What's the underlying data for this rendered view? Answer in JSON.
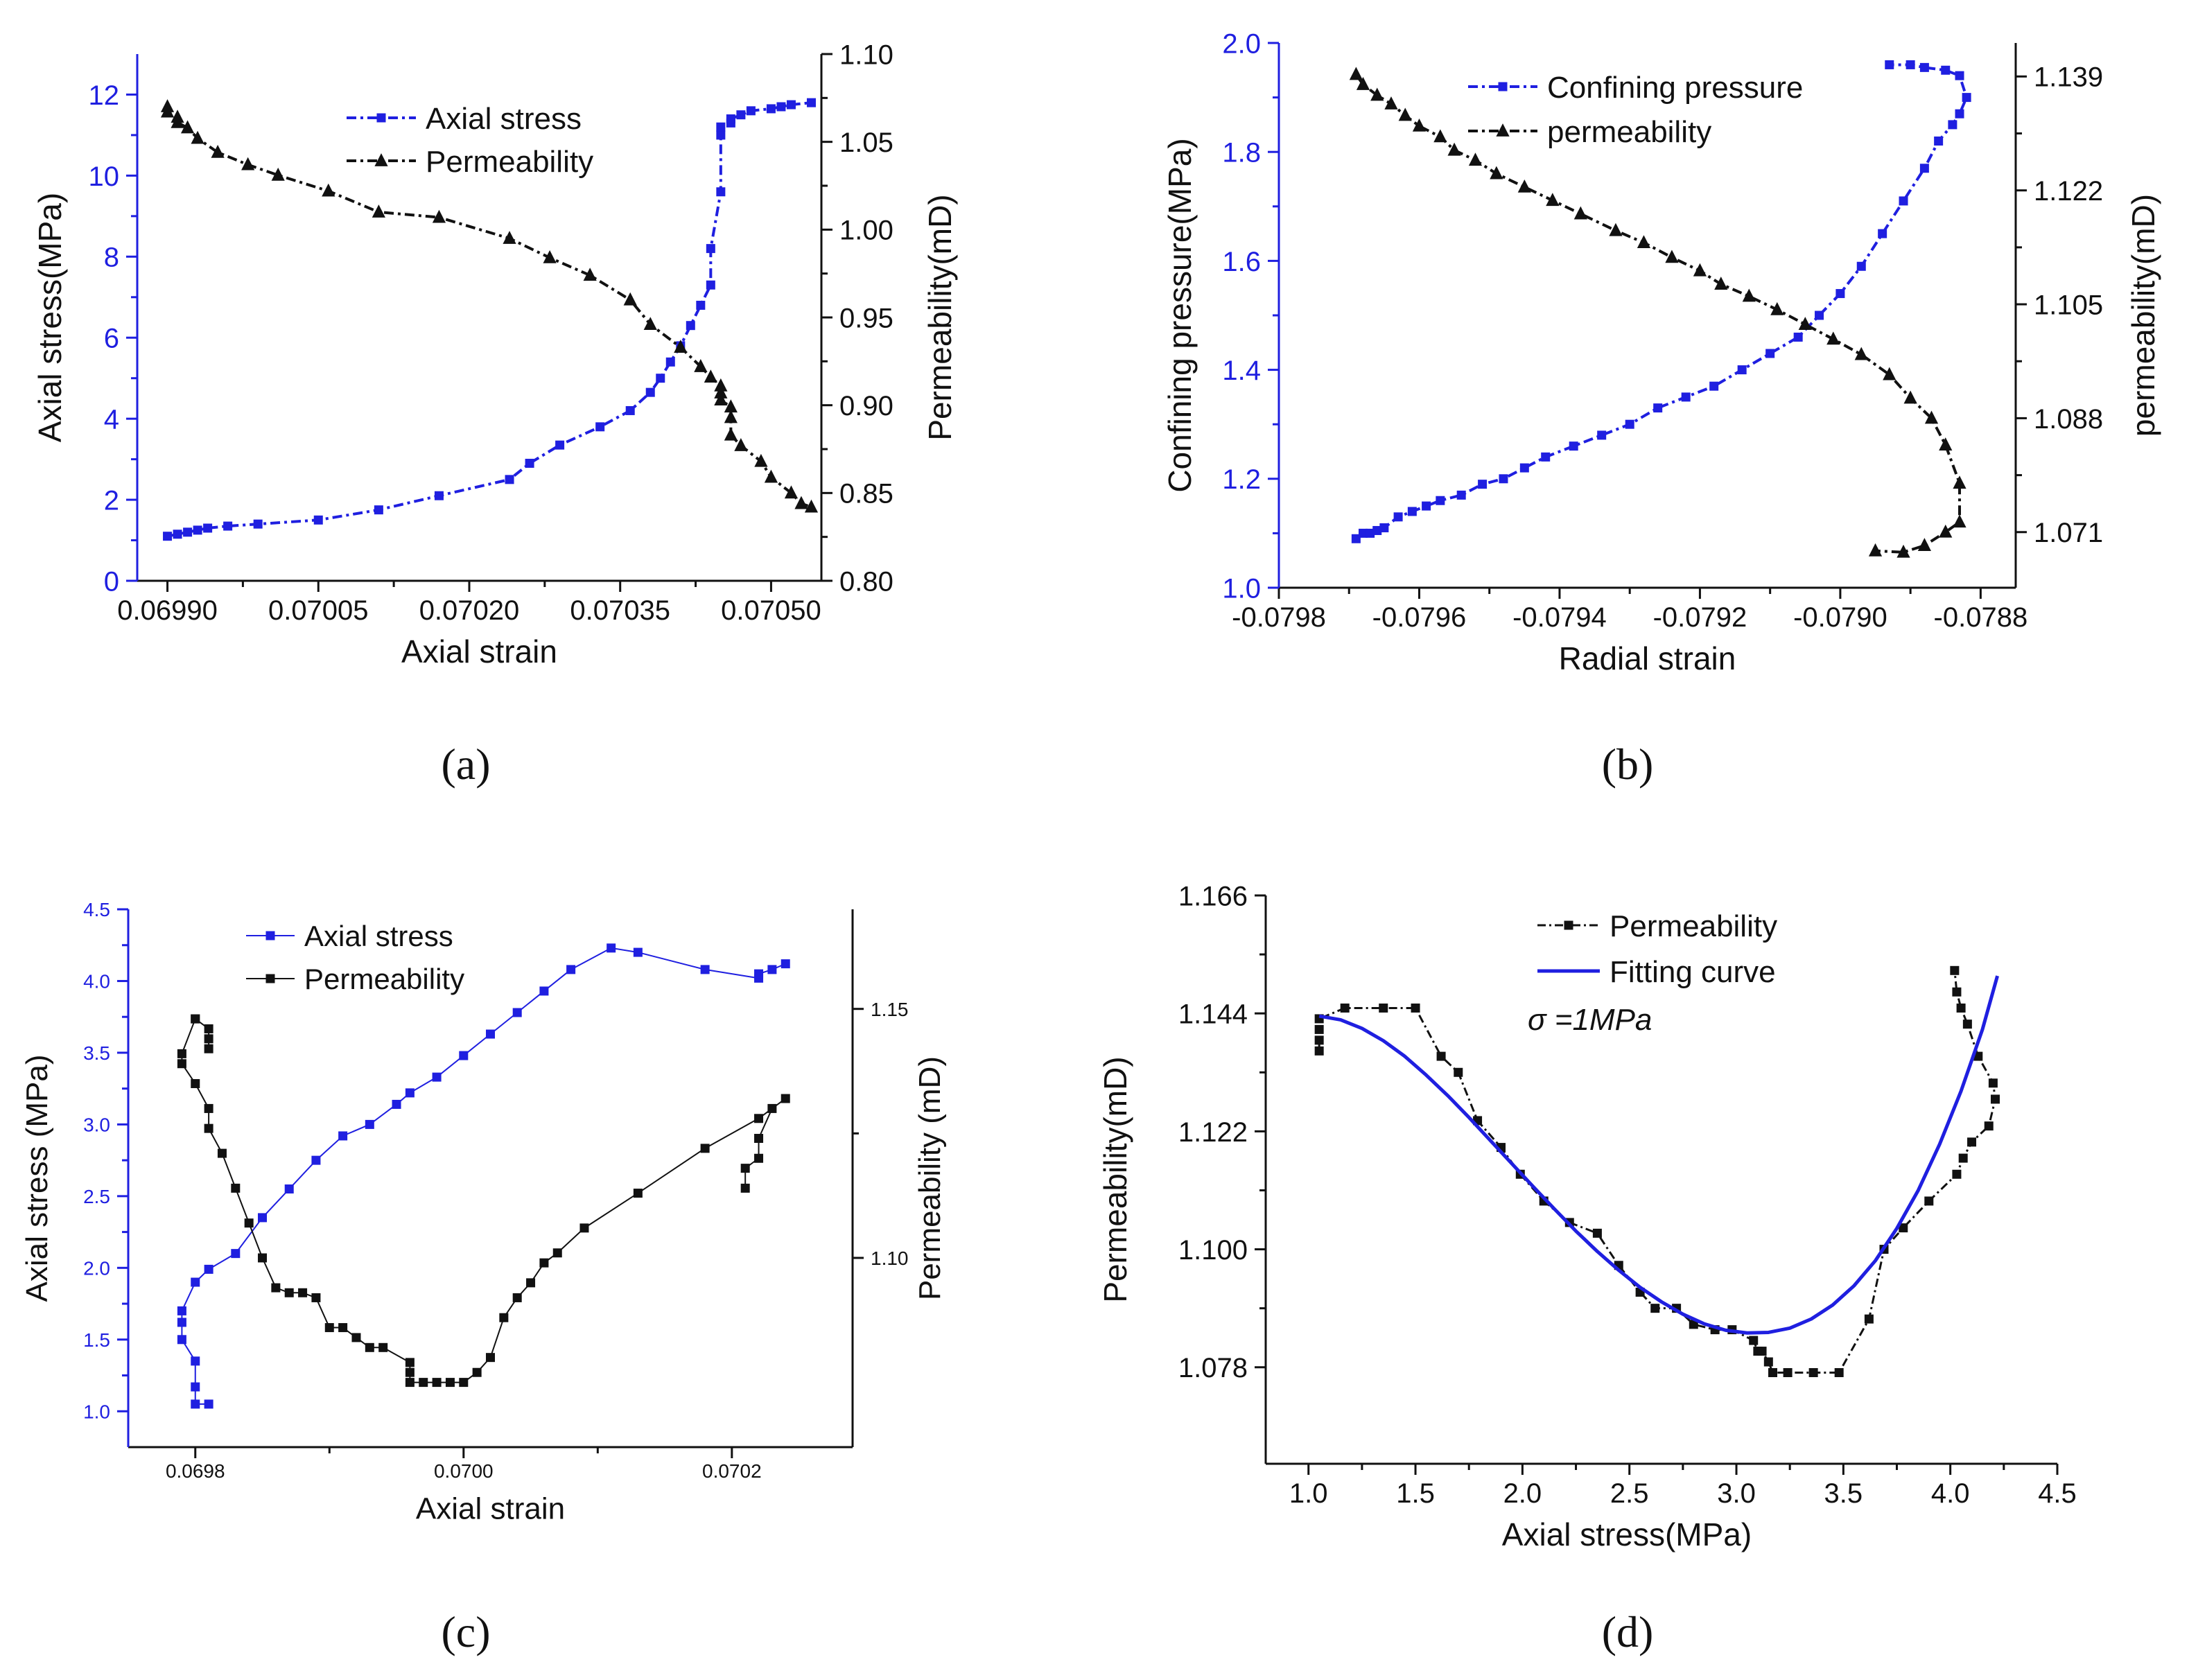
{
  "chart_data": [
    {
      "id": "a",
      "type": "line",
      "panel_label": "(a)",
      "xlabel": "Axial  strain",
      "ylabel_left": "Axial stress(MPa)",
      "ylabel_right": "Permeability(mD)",
      "xlim": [
        0.06987,
        0.07055
      ],
      "ylim_left": [
        0,
        13
      ],
      "ylim_right": [
        0.8,
        1.1
      ],
      "xticks": [
        "0.06990",
        "0.07005",
        "0.07020",
        "0.07035",
        "0.07050"
      ],
      "xtick_values": [
        0.0699,
        0.07005,
        0.0702,
        0.07035,
        0.0705
      ],
      "yticks_left": [
        "0",
        "2",
        "4",
        "6",
        "8",
        "10",
        "12"
      ],
      "ytick_values_left": [
        0,
        2,
        4,
        6,
        8,
        10,
        12
      ],
      "yticks_right": [
        "0.80",
        "0.85",
        "0.90",
        "0.95",
        "1.00",
        "1.05",
        "1.10"
      ],
      "ytick_values_right": [
        0.8,
        0.85,
        0.9,
        0.95,
        1.0,
        1.05,
        1.1
      ],
      "legend": [
        "Axial stress",
        "Permeability"
      ],
      "series": [
        {
          "name": "Axial stress",
          "axis": "left",
          "color": "#1f1fe0",
          "marker": "square",
          "x": [
            0.0699,
            0.06991,
            0.06992,
            0.06993,
            0.06994,
            0.06996,
            0.06999,
            0.07005,
            0.07011,
            0.07017,
            0.07024,
            0.07026,
            0.07029,
            0.07033,
            0.07036,
            0.07038,
            0.07039,
            0.0704,
            0.07041,
            0.07042,
            0.07043,
            0.07044,
            0.07044,
            0.07045,
            0.07045,
            0.07045,
            0.07046,
            0.07046,
            0.07047,
            0.07048,
            0.0705,
            0.07051,
            0.07052,
            0.07054
          ],
          "y": [
            1.1,
            1.15,
            1.2,
            1.25,
            1.3,
            1.35,
            1.4,
            1.5,
            1.75,
            2.1,
            2.5,
            2.9,
            3.35,
            3.8,
            4.2,
            4.65,
            5.0,
            5.4,
            5.8,
            6.3,
            6.8,
            7.3,
            8.2,
            9.6,
            11.0,
            11.2,
            11.3,
            11.4,
            11.5,
            11.6,
            11.65,
            11.7,
            11.75,
            11.8
          ]
        },
        {
          "name": "Permeability",
          "axis": "right",
          "color": "#111111",
          "marker": "triangle",
          "x": [
            0.0699,
            0.0699,
            0.06991,
            0.06991,
            0.06992,
            0.06993,
            0.06995,
            0.06998,
            0.07001,
            0.07006,
            0.07011,
            0.07017,
            0.07024,
            0.07028,
            0.07032,
            0.07036,
            0.07038,
            0.07041,
            0.07043,
            0.07044,
            0.07045,
            0.07045,
            0.07045,
            0.07046,
            0.07046,
            0.07046,
            0.07047,
            0.07049,
            0.0705,
            0.07052,
            0.07053,
            0.07054
          ],
          "y": [
            1.07,
            1.067,
            1.064,
            1.061,
            1.058,
            1.052,
            1.044,
            1.037,
            1.031,
            1.022,
            1.01,
            1.007,
            0.995,
            0.984,
            0.974,
            0.96,
            0.946,
            0.933,
            0.922,
            0.916,
            0.911,
            0.907,
            0.903,
            0.899,
            0.893,
            0.883,
            0.877,
            0.868,
            0.859,
            0.85,
            0.844,
            0.842
          ]
        }
      ]
    },
    {
      "id": "b",
      "type": "line",
      "panel_label": "(b)",
      "xlabel": "Radial strain",
      "ylabel_left": "Confining pressure(MPa)",
      "ylabel_right": "permeability(mD)",
      "xlim": [
        -0.0798,
        -0.07875
      ],
      "ylim_left": [
        1.0,
        2.0
      ],
      "ylim_right": [
        1.0627,
        1.144
      ],
      "xticks": [
        "-0.0798",
        "-0.0796",
        "-0.0794",
        "-0.0792",
        "-0.0790",
        "-0.0788"
      ],
      "xtick_values": [
        -0.0798,
        -0.0796,
        -0.0794,
        -0.0792,
        -0.079,
        -0.0788
      ],
      "yticks_left": [
        "1.0",
        "1.2",
        "1.4",
        "1.6",
        "1.8",
        "2.0"
      ],
      "ytick_values_left": [
        1.0,
        1.2,
        1.4,
        1.6,
        1.8,
        2.0
      ],
      "yticks_right": [
        "1.071",
        "1.088",
        "1.105",
        "1.122",
        "1.139"
      ],
      "ytick_values_right": [
        1.071,
        1.088,
        1.105,
        1.122,
        1.139
      ],
      "legend": [
        "Confining pressure",
        "permeability"
      ],
      "series": [
        {
          "name": "Confining pressure",
          "axis": "left",
          "color": "#1f1fe0",
          "marker": "square",
          "x": [
            -0.07969,
            -0.07968,
            -0.07967,
            -0.07966,
            -0.07965,
            -0.07963,
            -0.07961,
            -0.07959,
            -0.07957,
            -0.07954,
            -0.07951,
            -0.07948,
            -0.07945,
            -0.07942,
            -0.07938,
            -0.07934,
            -0.0793,
            -0.07926,
            -0.07922,
            -0.07918,
            -0.07914,
            -0.0791,
            -0.07906,
            -0.07903,
            -0.079,
            -0.07897,
            -0.07894,
            -0.07891,
            -0.07888,
            -0.07886,
            -0.07884,
            -0.07883,
            -0.07882,
            -0.07883,
            -0.07885,
            -0.07888,
            -0.0789,
            -0.07893
          ],
          "y": [
            1.09,
            1.1,
            1.1,
            1.105,
            1.11,
            1.13,
            1.14,
            1.15,
            1.16,
            1.17,
            1.19,
            1.2,
            1.22,
            1.24,
            1.26,
            1.28,
            1.3,
            1.33,
            1.35,
            1.37,
            1.4,
            1.43,
            1.46,
            1.5,
            1.54,
            1.59,
            1.65,
            1.71,
            1.77,
            1.82,
            1.85,
            1.87,
            1.9,
            1.94,
            1.95,
            1.955,
            1.96,
            1.96
          ]
        },
        {
          "name": "permeability",
          "axis": "right",
          "color": "#111111",
          "marker": "triangle",
          "x": [
            -0.07969,
            -0.07968,
            -0.07966,
            -0.07964,
            -0.07962,
            -0.0796,
            -0.07957,
            -0.07955,
            -0.07952,
            -0.07949,
            -0.07945,
            -0.07941,
            -0.07937,
            -0.07932,
            -0.07928,
            -0.07924,
            -0.0792,
            -0.07917,
            -0.07913,
            -0.07909,
            -0.07905,
            -0.07901,
            -0.07897,
            -0.07893,
            -0.0789,
            -0.07887,
            -0.07885,
            -0.07883,
            -0.07883,
            -0.07885,
            -0.07888,
            -0.07891,
            -0.07895
          ],
          "y": [
            1.1393,
            1.1378,
            1.1362,
            1.1349,
            1.1332,
            1.1316,
            1.13,
            1.128,
            1.1265,
            1.1245,
            1.1225,
            1.1205,
            1.1185,
            1.116,
            1.1142,
            1.112,
            1.11,
            1.108,
            1.1062,
            1.1042,
            1.102,
            1.0998,
            1.0975,
            1.0945,
            1.091,
            1.088,
            1.084,
            1.0783,
            1.0725,
            1.071,
            1.069,
            1.068,
            1.0682
          ]
        }
      ]
    },
    {
      "id": "c",
      "type": "line",
      "panel_label": "(c)",
      "xlabel": "Axial strain",
      "ylabel_left": "Axial stress (MPa)",
      "ylabel_right": "Permeability (mD)",
      "xlim": [
        0.06975,
        0.07029
      ],
      "ylim_left": [
        0.75,
        4.5
      ],
      "ylim_right": [
        1.062,
        1.17
      ],
      "xticks": [
        "0.0698",
        "0.0700",
        "0.0702"
      ],
      "xtick_values": [
        0.0698,
        0.07,
        0.0702
      ],
      "yticks_left": [
        "1.0",
        "1.5",
        "2.0",
        "2.5",
        "3.0",
        "3.5",
        "4.0",
        "4.5"
      ],
      "ytick_values_left": [
        1.0,
        1.5,
        2.0,
        2.5,
        3.0,
        3.5,
        4.0,
        4.5
      ],
      "yticks_right": [
        "1.10",
        "1.15"
      ],
      "ytick_values_right": [
        1.1,
        1.15
      ],
      "legend": [
        "Axial stress",
        "Permeability"
      ],
      "series": [
        {
          "name": "Axial stress",
          "axis": "left",
          "color": "#1f1fe0",
          "marker": "square",
          "x": [
            0.06981,
            0.0698,
            0.0698,
            0.0698,
            0.06979,
            0.06979,
            0.06979,
            0.0698,
            0.06981,
            0.06983,
            0.06985,
            0.06987,
            0.06989,
            0.06991,
            0.06993,
            0.06995,
            0.06996,
            0.06998,
            0.07,
            0.07002,
            0.07004,
            0.07006,
            0.07008,
            0.07011,
            0.07013,
            0.07018,
            0.07022,
            0.07022,
            0.07023,
            0.07024
          ],
          "y": [
            1.05,
            1.05,
            1.17,
            1.35,
            1.5,
            1.62,
            1.7,
            1.9,
            1.99,
            2.1,
            2.35,
            2.55,
            2.75,
            2.92,
            3.0,
            3.14,
            3.22,
            3.33,
            3.48,
            3.63,
            3.78,
            3.93,
            4.08,
            4.23,
            4.2,
            4.08,
            4.02,
            4.05,
            4.08,
            4.12
          ]
        },
        {
          "name": "Permeability",
          "axis": "right",
          "color": "#111111",
          "marker": "square",
          "x": [
            0.06981,
            0.06981,
            0.06981,
            0.0698,
            0.0698,
            0.06979,
            0.06979,
            0.0698,
            0.06981,
            0.06981,
            0.06982,
            0.06983,
            0.06984,
            0.06985,
            0.06986,
            0.06987,
            0.06988,
            0.06989,
            0.0699,
            0.06991,
            0.06992,
            0.06993,
            0.06994,
            0.06996,
            0.06996,
            0.06996,
            0.06997,
            0.06998,
            0.06999,
            0.07,
            0.07001,
            0.07002,
            0.07003,
            0.07004,
            0.07005,
            0.07006,
            0.07007,
            0.07009,
            0.07013,
            0.07018,
            0.07022,
            0.07024,
            0.07023,
            0.07022,
            0.07022,
            0.07021,
            0.07021
          ],
          "y": [
            1.142,
            1.144,
            1.146,
            1.148,
            1.148,
            1.141,
            1.139,
            1.135,
            1.13,
            1.126,
            1.121,
            1.114,
            1.107,
            1.1,
            1.094,
            1.093,
            1.093,
            1.092,
            1.086,
            1.086,
            1.084,
            1.082,
            1.082,
            1.079,
            1.077,
            1.075,
            1.075,
            1.075,
            1.075,
            1.075,
            1.077,
            1.08,
            1.088,
            1.092,
            1.095,
            1.099,
            1.101,
            1.106,
            1.113,
            1.122,
            1.128,
            1.132,
            1.13,
            1.124,
            1.12,
            1.118,
            1.114
          ]
        }
      ]
    },
    {
      "id": "d",
      "type": "line",
      "panel_label": "(d)",
      "xlabel": "Axial stress(MPa)",
      "ylabel": "Permeability(mD)",
      "annotation": "σ =1MPa",
      "xlim": [
        0.8,
        4.5
      ],
      "ylim": [
        1.06,
        1.166
      ],
      "xticks": [
        "1.0",
        "1.5",
        "2.0",
        "2.5",
        "3.0",
        "3.5",
        "4.0",
        "4.5"
      ],
      "xtick_values": [
        1.0,
        1.5,
        2.0,
        2.5,
        3.0,
        3.5,
        4.0,
        4.5
      ],
      "yticks": [
        "1.078",
        "1.100",
        "1.122",
        "1.144",
        "1.166"
      ],
      "ytick_values": [
        1.078,
        1.1,
        1.122,
        1.144,
        1.166
      ],
      "legend": [
        "Permeability",
        "Fitting curve"
      ],
      "series": [
        {
          "name": "Permeability",
          "color": "#111111",
          "marker": "square",
          "x": [
            1.05,
            1.05,
            1.05,
            1.05,
            1.17,
            1.35,
            1.5,
            1.62,
            1.7,
            1.79,
            1.9,
            1.99,
            2.1,
            2.22,
            2.35,
            2.45,
            2.55,
            2.62,
            2.72,
            2.8,
            2.9,
            2.98,
            3.08,
            3.1,
            3.12,
            3.15,
            3.17,
            3.24,
            3.36,
            3.48,
            3.62,
            3.69,
            3.78,
            3.9,
            4.03,
            4.06,
            4.1,
            4.18,
            4.21,
            4.2,
            4.13,
            4.08,
            4.05,
            4.03,
            4.02
          ],
          "y": [
            1.137,
            1.139,
            1.141,
            1.143,
            1.145,
            1.145,
            1.145,
            1.136,
            1.133,
            1.124,
            1.119,
            1.114,
            1.109,
            1.105,
            1.103,
            1.097,
            1.092,
            1.089,
            1.089,
            1.086,
            1.085,
            1.085,
            1.083,
            1.081,
            1.081,
            1.079,
            1.077,
            1.077,
            1.077,
            1.077,
            1.087,
            1.1,
            1.104,
            1.109,
            1.114,
            1.117,
            1.12,
            1.123,
            1.128,
            1.131,
            1.136,
            1.142,
            1.145,
            1.148,
            1.152
          ]
        },
        {
          "name": "Fitting curve",
          "color": "#1f1fe0",
          "marker": "none",
          "x": [
            1.05,
            1.15,
            1.25,
            1.35,
            1.45,
            1.55,
            1.65,
            1.75,
            1.85,
            1.95,
            2.05,
            2.15,
            2.25,
            2.35,
            2.45,
            2.55,
            2.65,
            2.75,
            2.85,
            2.95,
            3.05,
            3.15,
            3.25,
            3.35,
            3.45,
            3.55,
            3.65,
            3.75,
            3.85,
            3.95,
            4.05,
            4.15,
            4.22
          ],
          "y": [
            1.1435,
            1.1428,
            1.1412,
            1.1389,
            1.136,
            1.1325,
            1.1287,
            1.1246,
            1.1203,
            1.116,
            1.1117,
            1.1075,
            1.1034,
            1.0996,
            1.0961,
            1.0929,
            1.0902,
            1.0879,
            1.0861,
            1.0849,
            1.0844,
            1.0845,
            1.0853,
            1.087,
            1.0896,
            1.0932,
            1.0979,
            1.1039,
            1.111,
            1.1196,
            1.1295,
            1.141,
            1.151
          ]
        }
      ]
    }
  ]
}
